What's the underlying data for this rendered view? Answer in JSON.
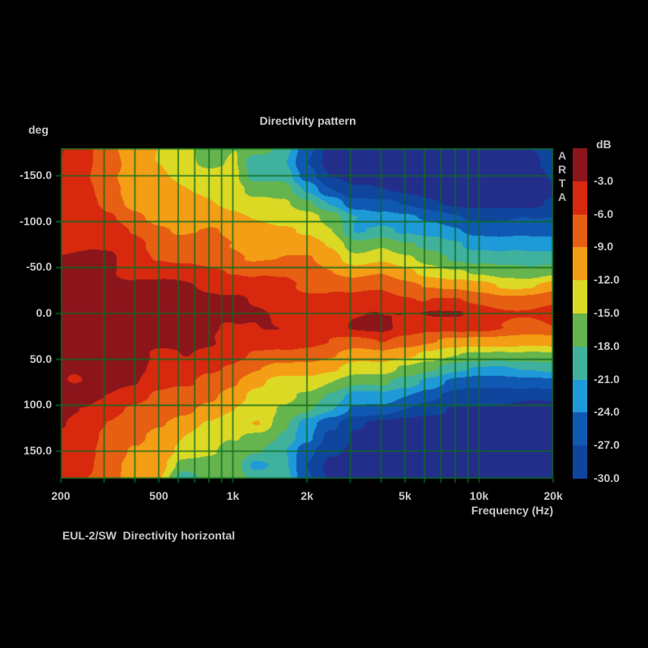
{
  "title": "Directivity pattern",
  "footer": "EUL-2/SW  Directivity horizontal",
  "watermark_vertical": "ARTA",
  "y_axis": {
    "unit_label": "deg",
    "ticks": [
      {
        "label": "-150.0",
        "value": -150
      },
      {
        "label": "-100.0",
        "value": -100
      },
      {
        "label": "-50.0",
        "value": -50
      },
      {
        "label": "0.0",
        "value": 0
      },
      {
        "label": "50.0",
        "value": 50
      },
      {
        "label": "100.0",
        "value": 100
      },
      {
        "label": "150.0",
        "value": 150
      }
    ]
  },
  "x_axis": {
    "label": "Frequency (Hz)",
    "ticks": [
      {
        "label": "200",
        "value": 200
      },
      {
        "label": "500",
        "value": 500
      },
      {
        "label": "1k",
        "value": 1000
      },
      {
        "label": "2k",
        "value": 2000
      },
      {
        "label": "5k",
        "value": 5000
      },
      {
        "label": "10k",
        "value": 10000
      },
      {
        "label": "20k",
        "value": 20000
      }
    ]
  },
  "colorbar": {
    "unit": "dB",
    "tick_labels": [
      "-3.0",
      "-6.0",
      "-9.0",
      "-12.0",
      "-15.0",
      "-18.0",
      "-21.0",
      "-24.0",
      "-27.0",
      "-30.0"
    ],
    "band_colors": [
      "#8c151c",
      "#d8290f",
      "#e65f13",
      "#f49e15",
      "#dcd925",
      "#66b44d",
      "#3fb19d",
      "#1f9ad8",
      "#1059b3",
      "#10459e"
    ],
    "below_min_color": "#232e8b"
  },
  "chart_data": {
    "type": "heatmap",
    "title": "Directivity pattern",
    "xlabel": "Frequency (Hz)",
    "ylabel": "deg",
    "x_scale": "log",
    "x_range_hz": [
      200,
      20000
    ],
    "y_range_deg": [
      -180,
      180
    ],
    "value_unit": "dB",
    "value_range_db": [
      -30,
      0
    ],
    "band_step_db": 3,
    "grid": true,
    "grid_color": "#0d6a20",
    "x_gridlines_hz": [
      300,
      400,
      500,
      600,
      700,
      800,
      900,
      1000,
      2000,
      3000,
      4000,
      5000,
      6000,
      7000,
      8000,
      9000,
      10000
    ],
    "y_gridlines_deg": [
      -150,
      -100,
      -50,
      0,
      50,
      100,
      150
    ],
    "x_frequencies_hz": [
      200,
      250,
      315,
      400,
      500,
      630,
      800,
      1000,
      1250,
      1600,
      2000,
      2500,
      3150,
      4000,
      5000,
      6300,
      8000,
      10000,
      12500,
      16000,
      20000
    ],
    "y_angles_deg": [
      -180,
      -165,
      -150,
      -135,
      -120,
      -105,
      -90,
      -75,
      -60,
      -45,
      -30,
      -15,
      0,
      15,
      30,
      45,
      60,
      75,
      90,
      105,
      120,
      135,
      150,
      165,
      180
    ],
    "values_db": [
      [
        -4,
        -5.5,
        -8,
        -10,
        -12,
        -13.5,
        -15.5,
        -14.8,
        -16.5,
        -20,
        -26,
        -31,
        -32,
        -32,
        -32,
        -32,
        -32,
        -32,
        -32,
        -29.5,
        -29
      ],
      [
        -4,
        -5.5,
        -8,
        -10.5,
        -12.5,
        -13.5,
        -15,
        -14.5,
        -21.5,
        -21,
        -27,
        -31.5,
        -32,
        -32,
        -32,
        -32,
        -32.5,
        -32.5,
        -32.5,
        -31,
        -29.5
      ],
      [
        -4,
        -5.5,
        -8.5,
        -10.5,
        -12.5,
        -13,
        -13.5,
        -14,
        -20,
        -19,
        -25,
        -30,
        -31.5,
        -31.5,
        -31.5,
        -32,
        -32,
        -32.5,
        -32.5,
        -32,
        -30.5
      ],
      [
        -4,
        -5,
        -7.5,
        -10,
        -11.5,
        -12.5,
        -12.5,
        -13.5,
        -15.5,
        -16.5,
        -21,
        -26.5,
        -30,
        -30.5,
        -30.5,
        -31,
        -31.5,
        -32,
        -32,
        -32,
        -31
      ],
      [
        -3.5,
        -5,
        -7,
        -9.5,
        -10.5,
        -11.5,
        -12,
        -12.5,
        -13.5,
        -14.5,
        -17.5,
        -21,
        -26,
        -27,
        -28,
        -29,
        -30,
        -30.5,
        -31,
        -30.5,
        -28.5
      ],
      [
        -3.5,
        -4.5,
        -6,
        -8,
        -9.5,
        -10.5,
        -11,
        -11.5,
        -12,
        -13,
        -14,
        -16.5,
        -20.5,
        -23,
        -24.5,
        -25.5,
        -26.5,
        -27.5,
        -27.5,
        -27,
        -26.5
      ],
      [
        -3,
        -4,
        -5,
        -6.5,
        -8,
        -9,
        -9.5,
        -10.5,
        -11,
        -11.5,
        -12.5,
        -15,
        -20.5,
        -19.5,
        -21.5,
        -23,
        -24,
        -25,
        -25.5,
        -25.5,
        -25
      ],
      [
        -3.3,
        -3.4,
        -3.8,
        -5,
        -6.5,
        -7.5,
        -8.5,
        -9.5,
        -10,
        -10.5,
        -11,
        -12.5,
        -16.5,
        -14.5,
        -17.5,
        -19,
        -20.5,
        -22,
        -23,
        -23,
        -22.5
      ],
      [
        -2.6,
        -2.6,
        -3.1,
        -4.5,
        -5.5,
        -6.5,
        -7.5,
        -8,
        -8.5,
        -9,
        -9.5,
        -11,
        -13.5,
        -12.5,
        -14.5,
        -16,
        -17.5,
        -19,
        -20,
        -20,
        -19
      ],
      [
        -2,
        -2.5,
        -3,
        -3.6,
        -4.2,
        -4.6,
        -4.8,
        -5.2,
        -6.2,
        -7,
        -7.8,
        -9,
        -10.5,
        -10,
        -11.5,
        -12.5,
        -14,
        -15.5,
        -16.5,
        -16.5,
        -15.5
      ],
      [
        -1.5,
        -1.9,
        -2.2,
        -2.7,
        -3.1,
        -3.1,
        -3.2,
        -3.9,
        -4.8,
        -5.3,
        -6.2,
        -6.5,
        -7.5,
        -7,
        -8,
        -9,
        -10,
        -11,
        -12,
        -12,
        -11
      ],
      [
        -1,
        -1.2,
        -1.5,
        -1.8,
        -2,
        -2.3,
        -2.6,
        -2.9,
        -3.8,
        -4,
        -4.2,
        -4.5,
        -5,
        -4.8,
        -5.5,
        -6,
        -6.5,
        -7,
        -7.5,
        -7.5,
        -7
      ],
      [
        -0.5,
        -0.5,
        -0.8,
        -1,
        -1.2,
        -1.5,
        -2,
        -2.5,
        -3.2,
        -3.5,
        -3.8,
        -4,
        -3.4,
        -3.1,
        -2.6,
        -2.6,
        -3.2,
        -4.5,
        -5,
        -5,
        -4.5
      ],
      [
        -0.5,
        -0.5,
        -0.8,
        -1,
        -1.2,
        -1.8,
        -2.2,
        -2.8,
        -3.5,
        -3.8,
        -4,
        -4,
        -2.5,
        -2.5,
        -4,
        -4.5,
        -5,
        -5.5,
        -6,
        -6,
        -5.5
      ],
      [
        -1,
        -1,
        -1.2,
        -1.5,
        -1.8,
        -2.5,
        -2.8,
        -3.5,
        -4.5,
        -5,
        -5.8,
        -6,
        -6.5,
        -6,
        -7.5,
        -8.5,
        -9.5,
        -10.5,
        -11,
        -11,
        -10
      ],
      [
        -1.5,
        -1.8,
        -2,
        -2.2,
        -3.3,
        -2.9,
        -4,
        -5,
        -6,
        -7,
        -8,
        -9,
        -10,
        -9.5,
        -11.5,
        -13,
        -14.5,
        -15.5,
        -16.5,
        -16.5,
        -15.5
      ],
      [
        -2,
        -2.2,
        -2.5,
        -2.8,
        -3.6,
        -4.5,
        -6,
        -6.5,
        -8,
        -9.5,
        -10.5,
        -12,
        -13.5,
        -13,
        -15.5,
        -17.5,
        -19.5,
        -20.5,
        -21.5,
        -21.5,
        -20.5
      ],
      [
        -2.2,
        -2.5,
        -2.8,
        -2.9,
        -4.8,
        -5.5,
        -7,
        -8.5,
        -10.5,
        -12.5,
        -13.5,
        -15.5,
        -17.5,
        -17.5,
        -20,
        -22.5,
        -24.5,
        -25,
        -25.5,
        -25.5,
        -25
      ],
      [
        -2.6,
        -2.9,
        -3.4,
        -4.5,
        -6,
        -7.5,
        -9,
        -10.5,
        -12.5,
        -14.5,
        -16,
        -18.5,
        -22,
        -22.5,
        -25,
        -26.5,
        -28,
        -28.5,
        -29,
        -29,
        -28.5
      ],
      [
        -3.2,
        -3.5,
        -4.5,
        -6,
        -7.5,
        -9,
        -10.5,
        -12,
        -14,
        -16,
        -17.5,
        -20,
        -24,
        -25.5,
        -27.5,
        -29,
        -30.5,
        -31,
        -31,
        -31.5,
        -31
      ],
      [
        -3.5,
        -4,
        -5.5,
        -7.5,
        -9,
        -10.5,
        -12,
        -13.5,
        -12.5,
        -17.5,
        -22,
        -25.5,
        -29.5,
        -31,
        -31,
        -31,
        -31.5,
        -32,
        -32,
        -32,
        -32
      ],
      [
        -4,
        -4.5,
        -6.5,
        -8.5,
        -10,
        -11.5,
        -13,
        -14.5,
        -16.5,
        -18.5,
        -23,
        -28,
        -31,
        -31.5,
        -31.5,
        -31.5,
        -32,
        -32,
        -32,
        -32,
        -32
      ],
      [
        -4,
        -5,
        -7.5,
        -9.5,
        -11,
        -12.5,
        -13.5,
        -15.5,
        -18,
        -21,
        -26,
        -30,
        -31.5,
        -32,
        -32,
        -32,
        -32,
        -32.5,
        -32.5,
        -32.5,
        -32
      ],
      [
        -4.2,
        -5.5,
        -8,
        -10,
        -11.5,
        -17,
        -16,
        -16,
        -22,
        -20.5,
        -27,
        -30.5,
        -32,
        -32,
        -32,
        -32,
        -32.5,
        -32.5,
        -32.5,
        -33,
        -32.5
      ],
      [
        -4.5,
        -6,
        -8,
        -10,
        -12,
        -21.5,
        -17.5,
        -16,
        -18.5,
        -19.5,
        -26.5,
        -30,
        -32,
        -32,
        -32,
        -32,
        -32.5,
        -32.5,
        -32.5,
        -33,
        -32.5
      ]
    ]
  }
}
